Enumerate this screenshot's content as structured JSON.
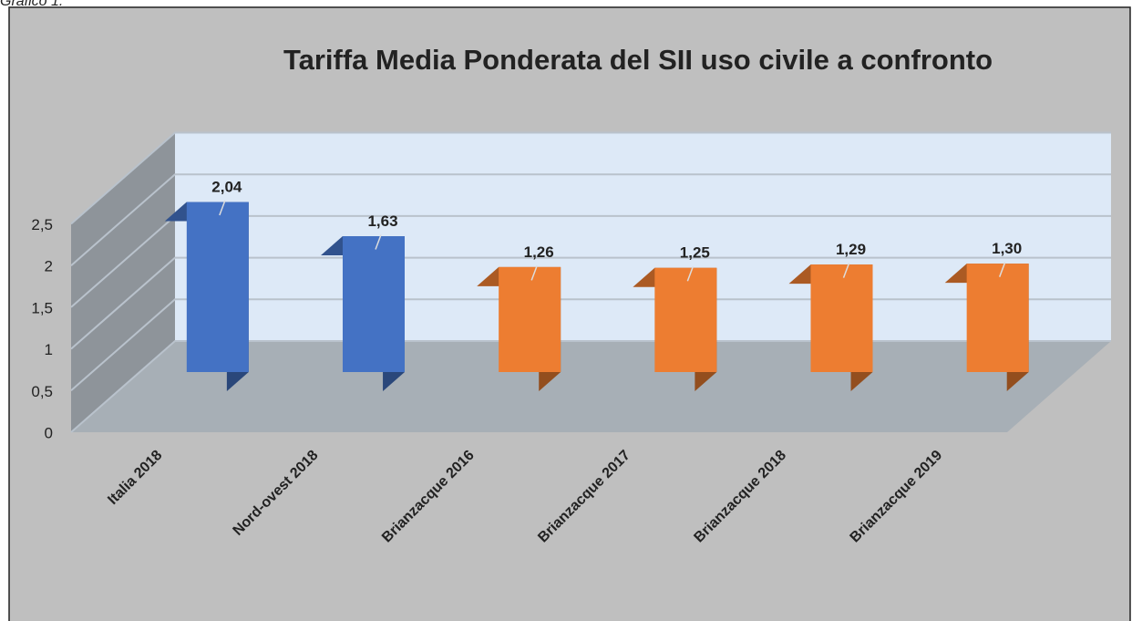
{
  "chart_data": {
    "type": "bar3d",
    "caption": "Grafico 1.",
    "title": "Tariffa  Media Ponderata  del SII uso civile a confronto",
    "categories": [
      "Italia 2018",
      "Nord-ovest 2018",
      "Brianzacque 2016",
      "Brianzacque 2017",
      "Brianzacque 2018",
      "Brianzacque 2019"
    ],
    "values": [
      2.04,
      1.63,
      1.26,
      1.25,
      1.29,
      1.3
    ],
    "value_labels": [
      "2,04",
      "1,63",
      "1,26",
      "1,25",
      "1,29",
      "1,30"
    ],
    "colors": [
      "#4472c4",
      "#4472c4",
      "#ed7d31",
      "#ed7d31",
      "#ed7d31",
      "#ed7d31"
    ],
    "ylim": [
      0,
      2.5
    ],
    "yticks": [
      0,
      {
        "value": 0.5,
        "label": "0,5"
      },
      1,
      {
        "value": 1.5,
        "label": "1,5"
      },
      2,
      {
        "value": 2.5,
        "label": "2,5"
      }
    ],
    "grid": true
  }
}
